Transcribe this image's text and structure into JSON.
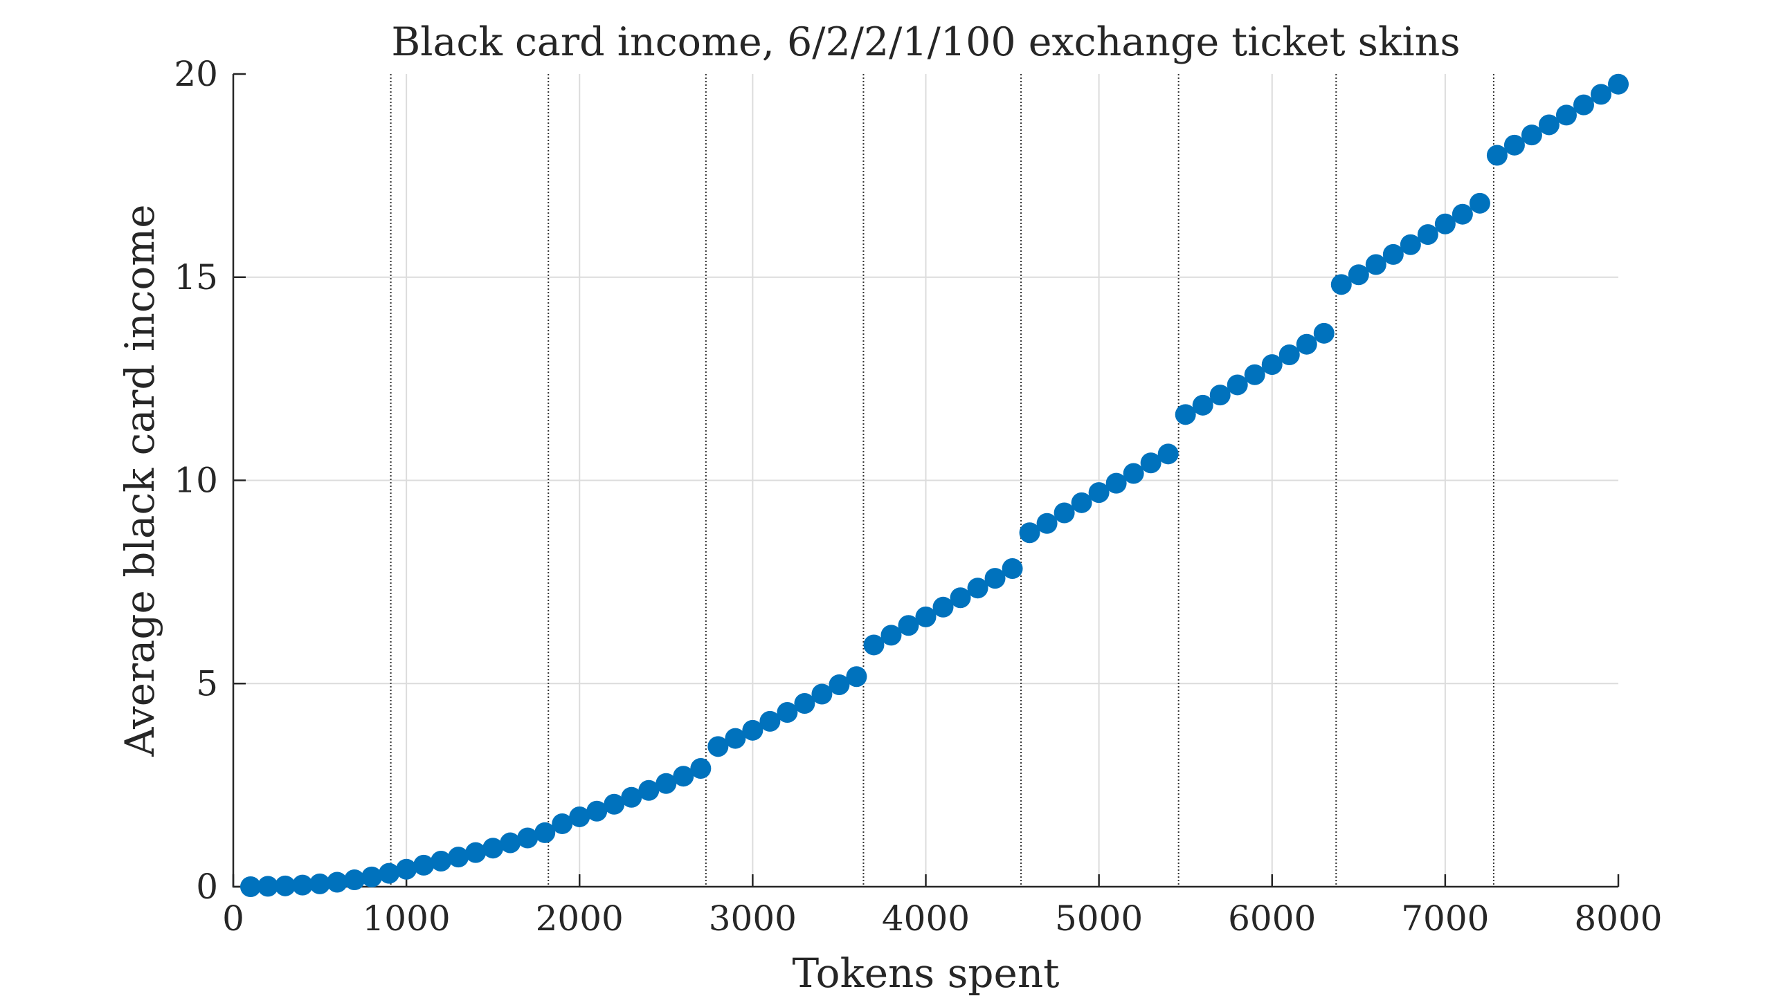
{
  "chart_data": {
    "type": "scatter",
    "title": "Black card income, 6/2/2/1/100 exchange ticket skins",
    "xlabel": "Tokens spent",
    "ylabel": "Average black card income",
    "xlim": [
      0,
      8000
    ],
    "ylim": [
      0,
      20
    ],
    "xticks": [
      0,
      1000,
      2000,
      3000,
      4000,
      5000,
      6000,
      7000,
      8000
    ],
    "xtick_labels": [
      "0",
      "1000",
      "2000",
      "3000",
      "4000",
      "5000",
      "6000",
      "7000",
      "8000"
    ],
    "yticks": [
      0,
      5,
      10,
      15,
      20
    ],
    "ytick_labels": [
      "0",
      "5",
      "10",
      "15",
      "20"
    ],
    "grid": true,
    "vertical_reference_lines": [
      910,
      1820,
      2730,
      3640,
      4550,
      5460,
      6370,
      7280
    ],
    "marker_color": "#0072BD",
    "series": [
      {
        "x": [
          100,
          200,
          300,
          400,
          500,
          600,
          700,
          800,
          900,
          1000,
          1100,
          1200,
          1300,
          1400,
          1500,
          1600,
          1700,
          1800,
          1900,
          2000,
          2100,
          2200,
          2300,
          2400,
          2500,
          2600,
          2700,
          2800,
          2900,
          3000,
          3100,
          3200,
          3300,
          3400,
          3500,
          3600,
          3700,
          3800,
          3900,
          4000,
          4100,
          4200,
          4300,
          4400,
          4500,
          4600,
          4700,
          4800,
          4900,
          5000,
          5100,
          5200,
          5300,
          5400,
          5500,
          5600,
          5700,
          5800,
          5900,
          6000,
          6100,
          6200,
          6300,
          6400,
          6500,
          6600,
          6700,
          6800,
          6900,
          7000,
          7100,
          7200,
          7300,
          7400,
          7500,
          7600,
          7700,
          7800,
          7900,
          8000
        ],
        "y": [
          0.0,
          0.01,
          0.02,
          0.04,
          0.07,
          0.11,
          0.17,
          0.24,
          0.33,
          0.43,
          0.53,
          0.63,
          0.73,
          0.84,
          0.95,
          1.08,
          1.2,
          1.33,
          1.55,
          1.72,
          1.86,
          2.03,
          2.2,
          2.37,
          2.54,
          2.72,
          2.91,
          3.45,
          3.65,
          3.85,
          4.07,
          4.29,
          4.51,
          4.74,
          4.97,
          5.17,
          5.95,
          6.19,
          6.43,
          6.64,
          6.88,
          7.11,
          7.35,
          7.59,
          7.83,
          8.71,
          8.94,
          9.2,
          9.45,
          9.7,
          9.93,
          10.17,
          10.43,
          10.65,
          11.62,
          11.85,
          12.1,
          12.35,
          12.6,
          12.85,
          13.09,
          13.35,
          13.62,
          14.82,
          15.06,
          15.31,
          15.56,
          15.8,
          16.05,
          16.31,
          16.55,
          16.82,
          18.0,
          18.25,
          18.5,
          18.75,
          18.99,
          19.24,
          19.5,
          19.75
        ]
      }
    ]
  }
}
